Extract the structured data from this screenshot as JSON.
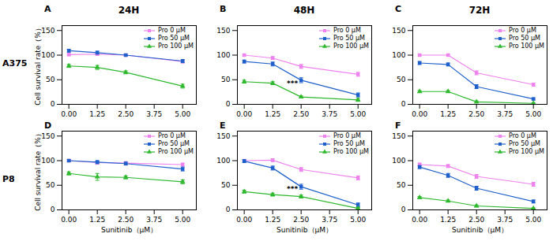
{
  "chart_data": [
    {
      "type": "line",
      "title": "24H",
      "row_label": "A375",
      "panel_label": "A",
      "x": [
        0,
        1.25,
        2.5,
        5
      ],
      "xlim": [
        -0.3,
        5.6
      ],
      "xticks": [
        {
          "value": 0,
          "label": "0.00"
        },
        1.25,
        {
          "value": 2.5,
          "label": "2.50"
        },
        3.75,
        {
          "value": 5,
          "label": "5.00"
        }
      ],
      "ylim": [
        0,
        160
      ],
      "yticks": [
        0,
        50,
        100,
        150
      ],
      "ylabel": "Cell survival rate（%）",
      "legend": "upper right",
      "series": [
        {
          "name": "Pro 0 μM",
          "color": "#ee82ee",
          "marker": "square",
          "values": [
            101,
            102,
            100,
            87
          ],
          "errors": [
            2,
            2,
            2,
            3
          ]
        },
        {
          "name": "Pro 50 μM",
          "color": "#1e5fcc",
          "marker": "square",
          "values": [
            109,
            105,
            100,
            88
          ],
          "errors": [
            3,
            3,
            2,
            3
          ]
        },
        {
          "name": "Pro 100 μM",
          "color": "#2eb82e",
          "marker": "triangle",
          "values": [
            78,
            75,
            65,
            37
          ],
          "errors": [
            3,
            4,
            3,
            4
          ]
        }
      ]
    },
    {
      "type": "line",
      "title": "48H",
      "panel_label": "B",
      "x": [
        0,
        1.25,
        2.5,
        5
      ],
      "xlim": [
        -0.3,
        5.6
      ],
      "xticks": [
        {
          "value": 0,
          "label": "0.00"
        },
        1.25,
        {
          "value": 2.5,
          "label": "2.50"
        },
        3.75,
        {
          "value": 5,
          "label": "5.00"
        }
      ],
      "ylim": [
        0,
        160
      ],
      "yticks": [
        0,
        50,
        100,
        150
      ],
      "legend": "upper right",
      "series": [
        {
          "name": "Pro 0 μM",
          "color": "#ee82ee",
          "marker": "square",
          "values": [
            100,
            94,
            77,
            61
          ],
          "errors": [
            2,
            3,
            4,
            4
          ]
        },
        {
          "name": "Pro 50 μM",
          "color": "#1e5fcc",
          "marker": "square",
          "values": [
            87,
            82,
            49,
            19
          ],
          "errors": [
            3,
            4,
            5,
            4
          ]
        },
        {
          "name": "Pro 100 μM",
          "color": "#2eb82e",
          "marker": "triangle",
          "values": [
            46,
            43,
            15,
            9
          ],
          "errors": [
            3,
            3,
            2,
            3
          ]
        }
      ],
      "annotations": [
        {
          "x": 2.5,
          "y": 42,
          "text": "***"
        }
      ]
    },
    {
      "type": "line",
      "title": "72H",
      "panel_label": "C",
      "x": [
        0,
        1.25,
        2.5,
        5
      ],
      "xlim": [
        -0.3,
        5.6
      ],
      "xticks": [
        {
          "value": 0,
          "label": "0.00"
        },
        1.25,
        {
          "value": 2.5,
          "label": "2.50"
        },
        3.75,
        {
          "value": 5,
          "label": "5.00"
        }
      ],
      "ylim": [
        0,
        160
      ],
      "yticks": [
        0,
        50,
        100,
        150
      ],
      "legend": "upper right",
      "series": [
        {
          "name": "Pro 0 μM",
          "color": "#ee82ee",
          "marker": "square",
          "values": [
            100,
            100,
            64,
            40
          ],
          "errors": [
            2,
            2,
            4,
            3
          ]
        },
        {
          "name": "Pro 50 μM",
          "color": "#1e5fcc",
          "marker": "square",
          "values": [
            84,
            81,
            36,
            11
          ],
          "errors": [
            3,
            3,
            4,
            2
          ]
        },
        {
          "name": "Pro 100 μM",
          "color": "#2eb82e",
          "marker": "triangle",
          "values": [
            26,
            26,
            5,
            2
          ],
          "errors": [
            2,
            2,
            2,
            1
          ]
        }
      ]
    },
    {
      "type": "line",
      "row_label": "P8",
      "panel_label": "D",
      "x": [
        0,
        1.25,
        2.5,
        5
      ],
      "xlim": [
        -0.3,
        5.6
      ],
      "xticks": [
        {
          "value": 0,
          "label": "0.00"
        },
        1.25,
        {
          "value": 2.5,
          "label": "2.50"
        },
        3.75,
        {
          "value": 5,
          "label": "5.00"
        }
      ],
      "ylim": [
        0,
        160
      ],
      "yticks": [
        0,
        50,
        100,
        150
      ],
      "xlabel": "Sunitinib（μM）",
      "ylabel": "Cell survival rate（%）",
      "legend": "upper right",
      "series": [
        {
          "name": "Pro 0 μM",
          "color": "#ee82ee",
          "marker": "square",
          "values": [
            100,
            96,
            95,
            92
          ],
          "errors": [
            2,
            3,
            3,
            3
          ]
        },
        {
          "name": "Pro 50 μM",
          "color": "#1e5fcc",
          "marker": "square",
          "values": [
            100,
            97,
            94,
            83
          ],
          "errors": [
            2,
            3,
            3,
            4
          ]
        },
        {
          "name": "Pro 100 μM",
          "color": "#2eb82e",
          "marker": "triangle",
          "values": [
            74,
            67,
            66,
            57
          ],
          "errors": [
            3,
            7,
            3,
            4
          ]
        }
      ]
    },
    {
      "type": "line",
      "panel_label": "E",
      "x": [
        0,
        1.25,
        2.5,
        5
      ],
      "xlim": [
        -0.3,
        5.6
      ],
      "xticks": [
        {
          "value": 0,
          "label": "0.00"
        },
        1.25,
        {
          "value": 2.5,
          "label": "2.50"
        },
        3.75,
        {
          "value": 5,
          "label": "5.00"
        }
      ],
      "ylim": [
        0,
        160
      ],
      "yticks": [
        0,
        50,
        100,
        150
      ],
      "xlabel": "Sunitinib（μM）",
      "legend": "upper right",
      "series": [
        {
          "name": "Pro 0 μM",
          "color": "#ee82ee",
          "marker": "square",
          "values": [
            100,
            101,
            82,
            65
          ],
          "errors": [
            2,
            3,
            4,
            4
          ]
        },
        {
          "name": "Pro 50 μM",
          "color": "#1e5fcc",
          "marker": "square",
          "values": [
            99,
            85,
            47,
            10
          ],
          "errors": [
            3,
            4,
            5,
            4
          ]
        },
        {
          "name": "Pro 100 μM",
          "color": "#2eb82e",
          "marker": "triangle",
          "values": [
            37,
            31,
            27,
            3
          ],
          "errors": [
            3,
            3,
            3,
            2
          ]
        }
      ],
      "annotations": [
        {
          "x": 2.5,
          "y": 43,
          "text": "***"
        }
      ]
    },
    {
      "type": "line",
      "panel_label": "F",
      "x": [
        0,
        1.25,
        2.5,
        5
      ],
      "xlim": [
        -0.3,
        5.6
      ],
      "xticks": [
        {
          "value": 0,
          "label": "0.00"
        },
        1.25,
        {
          "value": 2.5,
          "label": "2.50"
        },
        3.75,
        {
          "value": 5,
          "label": "5.00"
        }
      ],
      "ylim": [
        0,
        160
      ],
      "yticks": [
        0,
        50,
        100,
        150
      ],
      "xlabel": "Sunitinib（μM）",
      "legend": "upper right",
      "series": [
        {
          "name": "Pro 0 μM",
          "color": "#ee82ee",
          "marker": "square",
          "values": [
            92,
            89,
            68,
            52
          ],
          "errors": [
            3,
            3,
            4,
            4
          ]
        },
        {
          "name": "Pro 50 μM",
          "color": "#1e5fcc",
          "marker": "square",
          "values": [
            87,
            70,
            44,
            17
          ],
          "errors": [
            3,
            4,
            4,
            3
          ]
        },
        {
          "name": "Pro 100 μM",
          "color": "#2eb82e",
          "marker": "triangle",
          "values": [
            25,
            18,
            8,
            3
          ],
          "errors": [
            2,
            2,
            2,
            1
          ]
        }
      ]
    }
  ]
}
